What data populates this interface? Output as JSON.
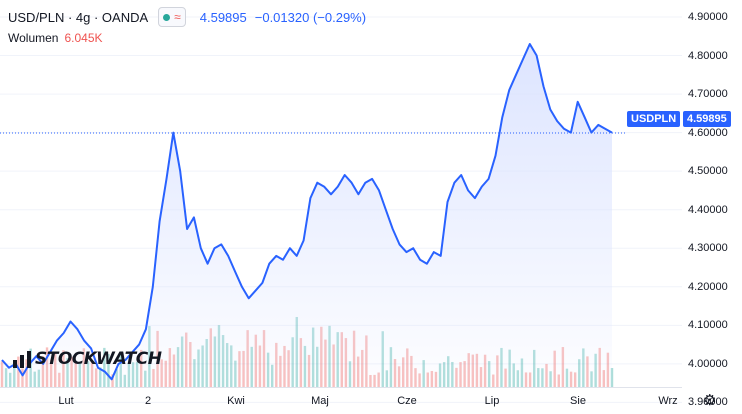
{
  "header": {
    "symbol": "USD/PLN · 4g · OANDA",
    "wave_glyph": "≈",
    "last_price": "4.59895",
    "change": "−0.01320 (−0.29%)"
  },
  "volume": {
    "label": "Wolumen",
    "value": "6.045K"
  },
  "price_tag": {
    "symbol": "USDPLN",
    "value": "4.59895"
  },
  "logo": {
    "text": "STOCKWATCH"
  },
  "icons": {
    "settings": "gear-icon",
    "logo": "chart-bars-icon"
  },
  "colors": {
    "line": "#2962ff",
    "area_top": "#dbe3ff",
    "vol_up": "#26a69a",
    "vol_down": "#ef5350",
    "grid": "#f0f3fa"
  },
  "chart_data": {
    "type": "area",
    "title": "USD/PLN",
    "timeframe": "4g",
    "source": "OANDA",
    "ylim": [
      3.85,
      4.92
    ],
    "y_ticks": [
      4.9,
      4.8,
      4.7,
      4.6,
      4.5,
      4.4,
      4.3,
      4.2,
      4.1,
      4.0,
      3.9
    ],
    "y_tick_labels": [
      "4.90000",
      "4.80000",
      "4.70000",
      "4.60000",
      "4.50000",
      "4.40000",
      "4.30000",
      "4.20000",
      "4.10000",
      "4.00000",
      "3.90000"
    ],
    "x_tick_labels": [
      "Lut",
      "2",
      "Kwi",
      "Maj",
      "Cze",
      "Lip",
      "Sie",
      "Wrz"
    ],
    "last_value": 4.59895,
    "series": [
      {
        "values": [
          4.01,
          3.99,
          4.0,
          3.97,
          4.0,
          4.02,
          4.0,
          4.03,
          4.06,
          4.08,
          4.11,
          4.09,
          4.06,
          4.04,
          3.99,
          3.98,
          3.96,
          4.0,
          4.01,
          4.03,
          4.05,
          4.09,
          4.2,
          4.37,
          4.48,
          4.6,
          4.5,
          4.35,
          4.38,
          4.3,
          4.26,
          4.3,
          4.31,
          4.28,
          4.24,
          4.2,
          4.17,
          4.19,
          4.21,
          4.26,
          4.28,
          4.27,
          4.3,
          4.28,
          4.32,
          4.43,
          4.47,
          4.46,
          4.44,
          4.46,
          4.49,
          4.47,
          4.44,
          4.47,
          4.48,
          4.45,
          4.4,
          4.35,
          4.31,
          4.29,
          4.3,
          4.27,
          4.26,
          4.29,
          4.28,
          4.42,
          4.47,
          4.49,
          4.45,
          4.43,
          4.46,
          4.48,
          4.54,
          4.64,
          4.71,
          4.75,
          4.79,
          4.83,
          4.8,
          4.72,
          4.66,
          4.63,
          4.61,
          4.6,
          4.68,
          4.64,
          4.6,
          4.62,
          4.61,
          4.6
        ]
      }
    ],
    "volume": {
      "bars": 150,
      "last_label": "6.045K"
    }
  }
}
